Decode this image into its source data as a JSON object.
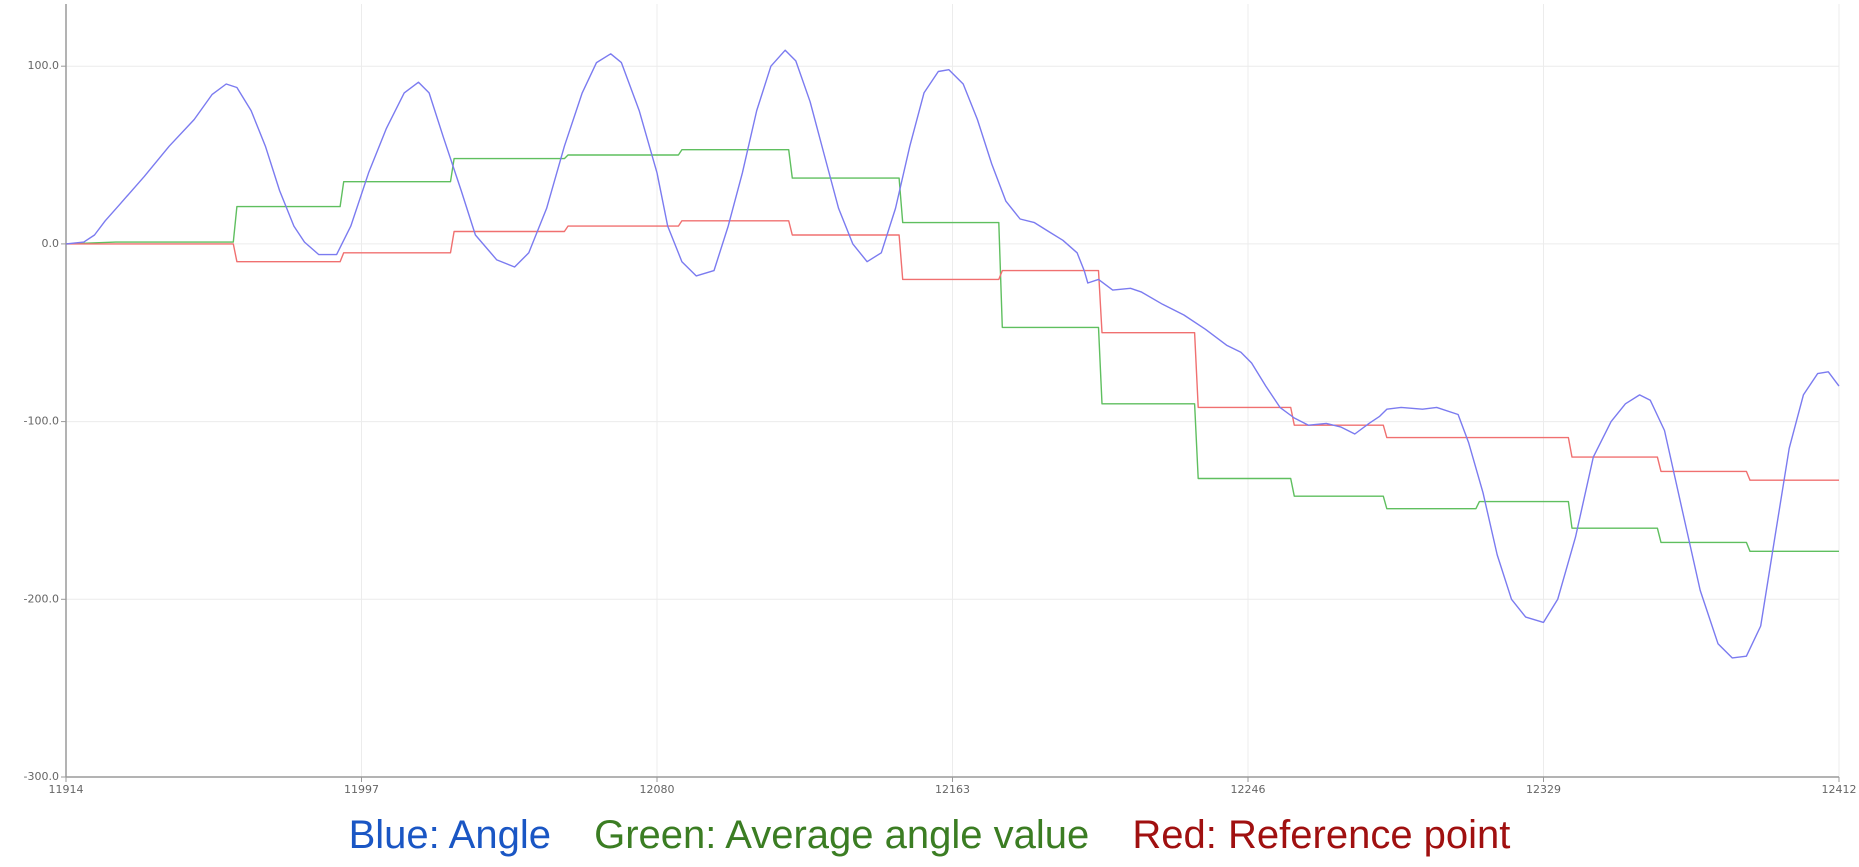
{
  "chart_data": {
    "type": "line",
    "title": "",
    "xlabel": "",
    "ylabel": "",
    "xlim": [
      11914,
      12412
    ],
    "ylim": [
      -300,
      135
    ],
    "x_ticks": [
      11914,
      11997,
      12080,
      12163,
      12246,
      12329,
      12412
    ],
    "x_tick_labels": [
      "11914",
      "11997",
      "12080",
      "12163",
      "12246",
      "12329",
      "12412"
    ],
    "y_ticks": [
      100,
      0,
      -100,
      -200,
      -300
    ],
    "y_tick_labels": [
      "100.0",
      "0.0",
      "-100.0",
      "-200.0",
      "-300.0"
    ],
    "grid": true,
    "colors": {
      "Angle": "#7b7bf0",
      "Average angle value": "#5fbf5f",
      "Reference point": "#f07070"
    },
    "series": [
      {
        "name": "Angle",
        "points": [
          [
            11914,
            0
          ],
          [
            11919,
            1
          ],
          [
            11922,
            5
          ],
          [
            11925,
            13
          ],
          [
            11929,
            22
          ],
          [
            11936,
            38
          ],
          [
            11943,
            55
          ],
          [
            11950,
            70
          ],
          [
            11955,
            84
          ],
          [
            11959,
            90
          ],
          [
            11962,
            88
          ],
          [
            11966,
            75
          ],
          [
            11970,
            55
          ],
          [
            11974,
            30
          ],
          [
            11978,
            10
          ],
          [
            11981,
            1
          ],
          [
            11985,
            -6
          ],
          [
            11990,
            -6
          ],
          [
            11994,
            10
          ],
          [
            11999,
            40
          ],
          [
            12004,
            65
          ],
          [
            12009,
            85
          ],
          [
            12013,
            91
          ],
          [
            12016,
            85
          ],
          [
            12020,
            60
          ],
          [
            12025,
            30
          ],
          [
            12029,
            5
          ],
          [
            12035,
            -9
          ],
          [
            12040,
            -13
          ],
          [
            12044,
            -5
          ],
          [
            12049,
            20
          ],
          [
            12054,
            55
          ],
          [
            12059,
            85
          ],
          [
            12063,
            102
          ],
          [
            12067,
            107
          ],
          [
            12070,
            102
          ],
          [
            12075,
            75
          ],
          [
            12080,
            40
          ],
          [
            12083,
            10
          ],
          [
            12087,
            -10
          ],
          [
            12091,
            -18
          ],
          [
            12096,
            -15
          ],
          [
            12100,
            10
          ],
          [
            12104,
            40
          ],
          [
            12108,
            75
          ],
          [
            12112,
            100
          ],
          [
            12116,
            109
          ],
          [
            12119,
            103
          ],
          [
            12123,
            80
          ],
          [
            12127,
            50
          ],
          [
            12131,
            20
          ],
          [
            12135,
            0
          ],
          [
            12139,
            -10
          ],
          [
            12143,
            -5
          ],
          [
            12147,
            20
          ],
          [
            12151,
            55
          ],
          [
            12155,
            85
          ],
          [
            12159,
            97
          ],
          [
            12162,
            98
          ],
          [
            12166,
            90
          ],
          [
            12170,
            70
          ],
          [
            12174,
            45
          ],
          [
            12178,
            24
          ],
          [
            12182,
            14
          ],
          [
            12186,
            12
          ],
          [
            12190,
            7
          ],
          [
            12194,
            2
          ],
          [
            12198,
            -5
          ],
          [
            12200,
            -15
          ],
          [
            12201,
            -22
          ],
          [
            12204,
            -20
          ],
          [
            12208,
            -26
          ],
          [
            12213,
            -25
          ],
          [
            12216,
            -27
          ],
          [
            12222,
            -34
          ],
          [
            12228,
            -40
          ],
          [
            12234,
            -48
          ],
          [
            12240,
            -57
          ],
          [
            12244,
            -61
          ],
          [
            12247,
            -67
          ],
          [
            12251,
            -80
          ],
          [
            12255,
            -92
          ],
          [
            12259,
            -98
          ],
          [
            12263,
            -102
          ],
          [
            12268,
            -101
          ],
          [
            12272,
            -103
          ],
          [
            12276,
            -107
          ],
          [
            12280,
            -101
          ],
          [
            12283,
            -97
          ],
          [
            12285,
            -93
          ],
          [
            12289,
            -92
          ],
          [
            12295,
            -93
          ],
          [
            12299,
            -92
          ],
          [
            12305,
            -96
          ],
          [
            12308,
            -112
          ],
          [
            12312,
            -140
          ],
          [
            12316,
            -175
          ],
          [
            12320,
            -200
          ],
          [
            12324,
            -210
          ],
          [
            12329,
            -213
          ],
          [
            12333,
            -200
          ],
          [
            12338,
            -165
          ],
          [
            12343,
            -120
          ],
          [
            12348,
            -100
          ],
          [
            12352,
            -90
          ],
          [
            12356,
            -85
          ],
          [
            12359,
            -88
          ],
          [
            12363,
            -105
          ],
          [
            12368,
            -150
          ],
          [
            12373,
            -195
          ],
          [
            12378,
            -225
          ],
          [
            12382,
            -233
          ],
          [
            12386,
            -232
          ],
          [
            12390,
            -215
          ],
          [
            12394,
            -165
          ],
          [
            12398,
            -115
          ],
          [
            12402,
            -85
          ],
          [
            12406,
            -73
          ],
          [
            12409,
            -72
          ],
          [
            12412,
            -80
          ]
        ]
      },
      {
        "name": "Average angle value",
        "steps": [
          [
            11914,
            0
          ],
          [
            11928,
            1
          ],
          [
            11961,
            1
          ],
          [
            11962,
            21
          ],
          [
            11991,
            21
          ],
          [
            11992,
            35
          ],
          [
            12022,
            35
          ],
          [
            12023,
            48
          ],
          [
            12054,
            48
          ],
          [
            12055,
            50
          ],
          [
            12086,
            50
          ],
          [
            12087,
            53
          ],
          [
            12117,
            53
          ],
          [
            12118,
            37
          ],
          [
            12148,
            37
          ],
          [
            12149,
            12
          ],
          [
            12176,
            12
          ],
          [
            12177,
            -47
          ],
          [
            12204,
            -47
          ],
          [
            12205,
            -90
          ],
          [
            12231,
            -90
          ],
          [
            12232,
            -132
          ],
          [
            12258,
            -132
          ],
          [
            12259,
            -142
          ],
          [
            12284,
            -142
          ],
          [
            12285,
            -149
          ],
          [
            12310,
            -149
          ],
          [
            12311,
            -145
          ],
          [
            12336,
            -145
          ],
          [
            12337,
            -160
          ],
          [
            12361,
            -160
          ],
          [
            12362,
            -168
          ],
          [
            12386,
            -168
          ],
          [
            12387,
            -173
          ],
          [
            12412,
            -173
          ]
        ]
      },
      {
        "name": "Reference point",
        "steps": [
          [
            11914,
            0
          ],
          [
            11961,
            0
          ],
          [
            11962,
            -10
          ],
          [
            11991,
            -10
          ],
          [
            11992,
            -5
          ],
          [
            12022,
            -5
          ],
          [
            12023,
            7
          ],
          [
            12054,
            7
          ],
          [
            12055,
            10
          ],
          [
            12086,
            10
          ],
          [
            12087,
            13
          ],
          [
            12117,
            13
          ],
          [
            12118,
            5
          ],
          [
            12148,
            5
          ],
          [
            12149,
            -20
          ],
          [
            12176,
            -20
          ],
          [
            12177,
            -15
          ],
          [
            12204,
            -15
          ],
          [
            12205,
            -50
          ],
          [
            12231,
            -50
          ],
          [
            12232,
            -92
          ],
          [
            12258,
            -92
          ],
          [
            12259,
            -102
          ],
          [
            12284,
            -102
          ],
          [
            12285,
            -109
          ],
          [
            12310,
            -109
          ],
          [
            12311,
            -109
          ],
          [
            12336,
            -109
          ],
          [
            12337,
            -120
          ],
          [
            12361,
            -120
          ],
          [
            12362,
            -128
          ],
          [
            12386,
            -128
          ],
          [
            12387,
            -133
          ],
          [
            12412,
            -133
          ]
        ]
      }
    ],
    "legend": [
      {
        "label": "Blue: Angle",
        "color": "#1a56c4"
      },
      {
        "label": "Green: Average angle value",
        "color": "#3b7d23"
      },
      {
        "label": "Red: Reference point",
        "color": "#a01010"
      }
    ]
  }
}
